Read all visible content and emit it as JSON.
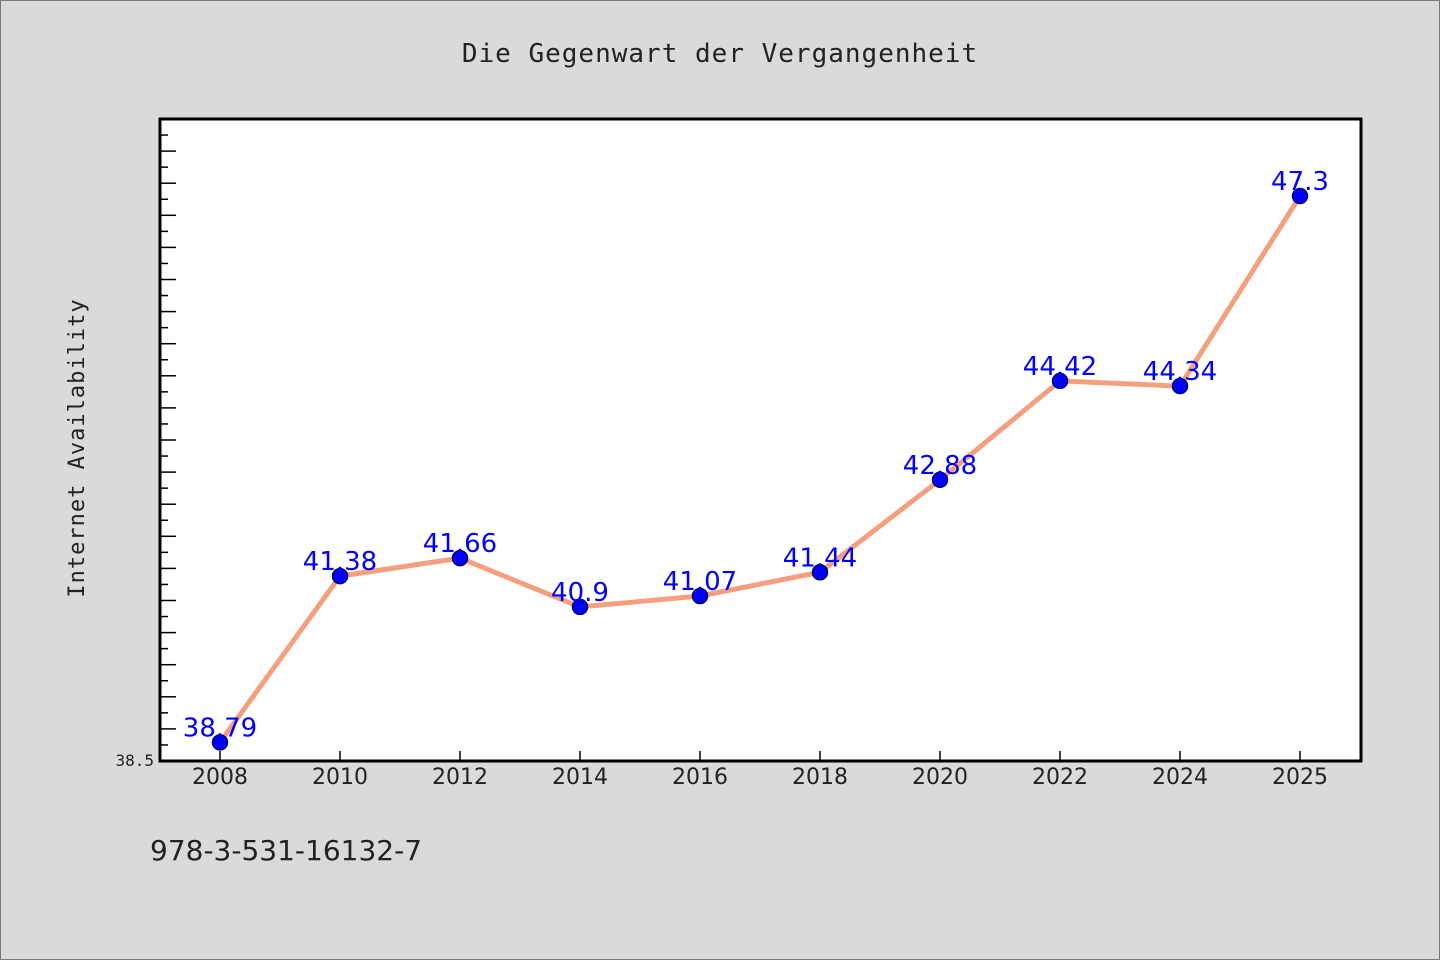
{
  "footer": {
    "isbn": "978-3-531-16132-7"
  },
  "chart_data": {
    "type": "line",
    "title": "Die Gegenwart der Vergangenheit",
    "xlabel": "",
    "ylabel": "Internet Availability",
    "categories": [
      "2008",
      "2010",
      "2012",
      "2014",
      "2016",
      "2018",
      "2020",
      "2022",
      "2024",
      "2025"
    ],
    "series": [
      {
        "values": [
          38.79,
          41.38,
          41.66,
          40.9,
          41.07,
          41.44,
          42.88,
          44.42,
          44.34,
          47.3
        ],
        "data_labels": [
          "38.79",
          "41.38",
          "41.66",
          "40.9",
          "41.07",
          "41.44",
          "42.88",
          "44.42",
          "44.34",
          "47.3"
        ]
      }
    ],
    "y_tick_labels": [
      "38.5"
    ],
    "ylim": [
      38.5,
      48.5
    ],
    "grid": false,
    "colors": {
      "line": "#f4a07f",
      "marker": "#0000ff",
      "data_label": "#0000ff",
      "plot_background": "#ffffff"
    }
  }
}
